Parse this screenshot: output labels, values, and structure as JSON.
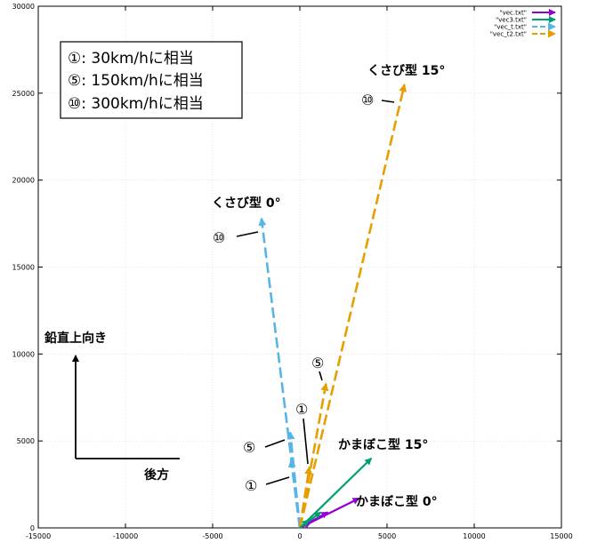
{
  "chart_data": {
    "type": "vector",
    "xlim": [
      -15000,
      15000
    ],
    "ylim": [
      0,
      30000
    ],
    "grid": true,
    "legend_position": "top-right",
    "x_ticks": [
      "-15000",
      "-10000",
      "-5000",
      "0",
      "5000",
      "10000",
      "15000"
    ],
    "x_tick_values": [
      -15000,
      -10000,
      -5000,
      0,
      5000,
      10000,
      15000
    ],
    "y_ticks": [
      "0",
      "5000",
      "10000",
      "15000",
      "20000",
      "25000",
      "30000"
    ],
    "y_tick_values": [
      0,
      5000,
      10000,
      15000,
      20000,
      25000,
      30000
    ],
    "series": [
      {
        "name": "\"vec.txt\"",
        "color": "#9400d3",
        "dashed": false,
        "vectors": [
          {
            "x0": 0,
            "y0": 0,
            "x1": 600,
            "y1": 300
          },
          {
            "x0": 0,
            "y0": 0,
            "x1": 1600,
            "y1": 900
          },
          {
            "x0": 0,
            "y0": 0,
            "x1": 3400,
            "y1": 1700
          }
        ]
      },
      {
        "name": "\"vec3.txt\"",
        "color": "#009e73",
        "dashed": false,
        "vectors": [
          {
            "x0": 0,
            "y0": 0,
            "x1": 500,
            "y1": 450
          },
          {
            "x0": 0,
            "y0": 0,
            "x1": 1200,
            "y1": 900
          },
          {
            "x0": 0,
            "y0": 0,
            "x1": 4100,
            "y1": 4000
          }
        ]
      },
      {
        "name": "\"vec_t.txt\"",
        "color": "#56b4e9",
        "dashed": true,
        "vectors": [
          {
            "x0": 0,
            "y0": 0,
            "x1": -500,
            "y1": 3900
          },
          {
            "x0": 0,
            "y0": 0,
            "x1": -550,
            "y1": 5500
          },
          {
            "x0": 0,
            "y0": 0,
            "x1": -2200,
            "y1": 17800
          }
        ]
      },
      {
        "name": "\"vec_t2.txt\"",
        "color": "#e69f00",
        "dashed": true,
        "vectors": [
          {
            "x0": 0,
            "y0": 0,
            "x1": 550,
            "y1": 3500
          },
          {
            "x0": 0,
            "y0": 0,
            "x1": 1500,
            "y1": 8300
          },
          {
            "x0": 0,
            "y0": 0,
            "x1": 6000,
            "y1": 25500
          }
        ]
      }
    ],
    "annotations": {
      "box_lines": [
        "①: 30km/hに相当",
        "⑤: 150km/hに相当",
        "⑩: 300km/hに相当"
      ],
      "kusabi0": "くさび型 0°",
      "kusabi15": "くさび型 15°",
      "kamaboko15": "かまぼこ型 15°",
      "kamaboko0": "かまぼこ型 0°",
      "circ10_a": "⑩",
      "circ10_b": "⑩",
      "circ5_a": "⑤",
      "circ5_b": "⑤",
      "circ1_a": "①",
      "circ1_b": "①",
      "vertical_label": "鉛直上向き",
      "back_label": "後方"
    }
  }
}
